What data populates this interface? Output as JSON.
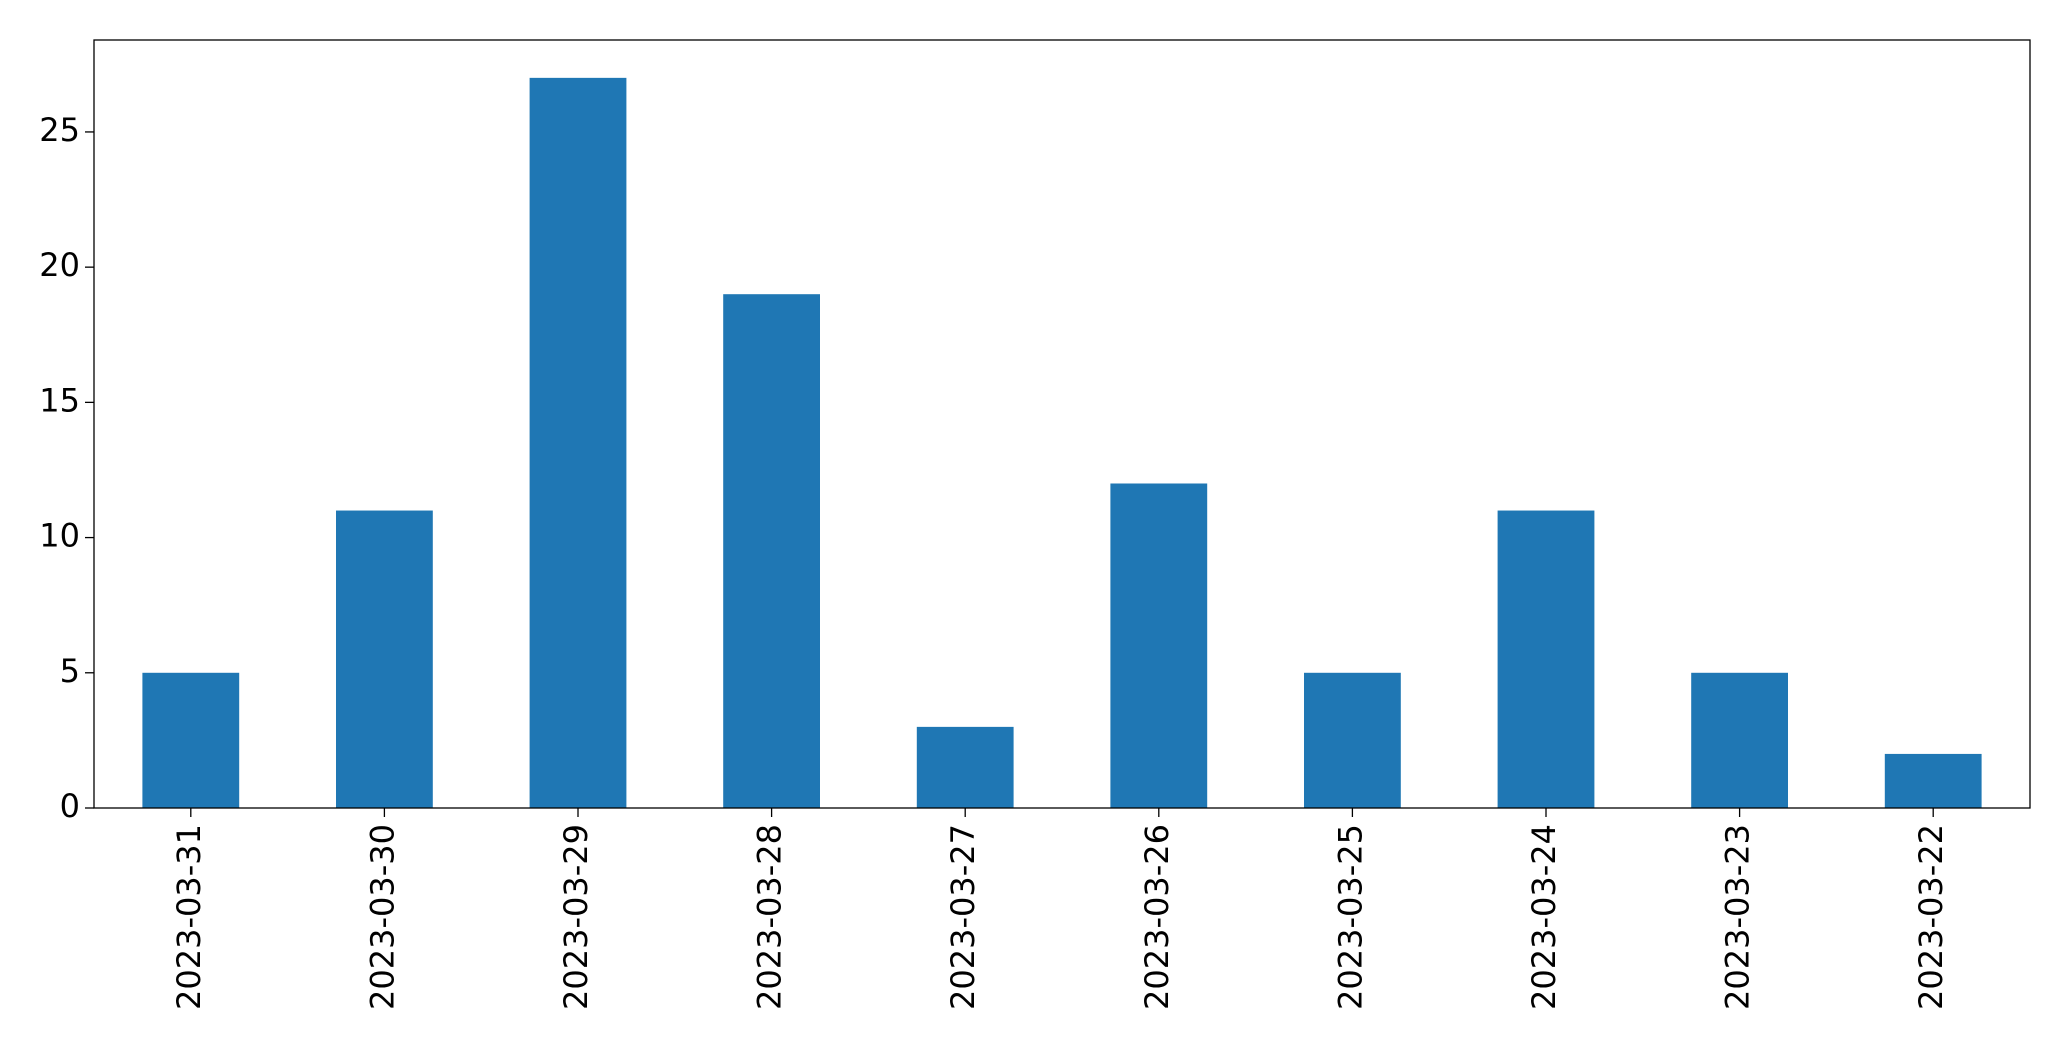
{
  "chart_data": {
    "type": "bar",
    "categories": [
      "2023-03-31",
      "2023-03-30",
      "2023-03-29",
      "2023-03-28",
      "2023-03-27",
      "2023-03-26",
      "2023-03-25",
      "2023-03-24",
      "2023-03-23",
      "2023-03-22"
    ],
    "values": [
      5,
      11,
      27,
      19,
      3,
      12,
      5,
      11,
      5,
      2
    ],
    "color": "#1f77b4",
    "ylim": [
      0,
      28.4
    ],
    "yticks": [
      0,
      5,
      10,
      15,
      20,
      25
    ],
    "grid": false
  }
}
